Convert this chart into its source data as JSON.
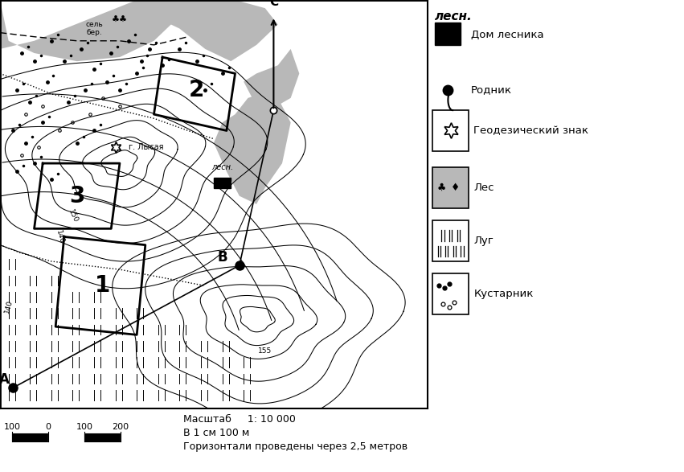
{
  "fig_width": 8.51,
  "fig_height": 5.87,
  "bg_color": "#ffffff",
  "legend_title": "лесн.",
  "gray_color": "#b8b8b8",
  "scale_line1": "Масштаб     1: 10 000",
  "scale_line2": "В 1 см 100 м",
  "scale_line3": "Горизонтали проведены через 2,5 метров"
}
